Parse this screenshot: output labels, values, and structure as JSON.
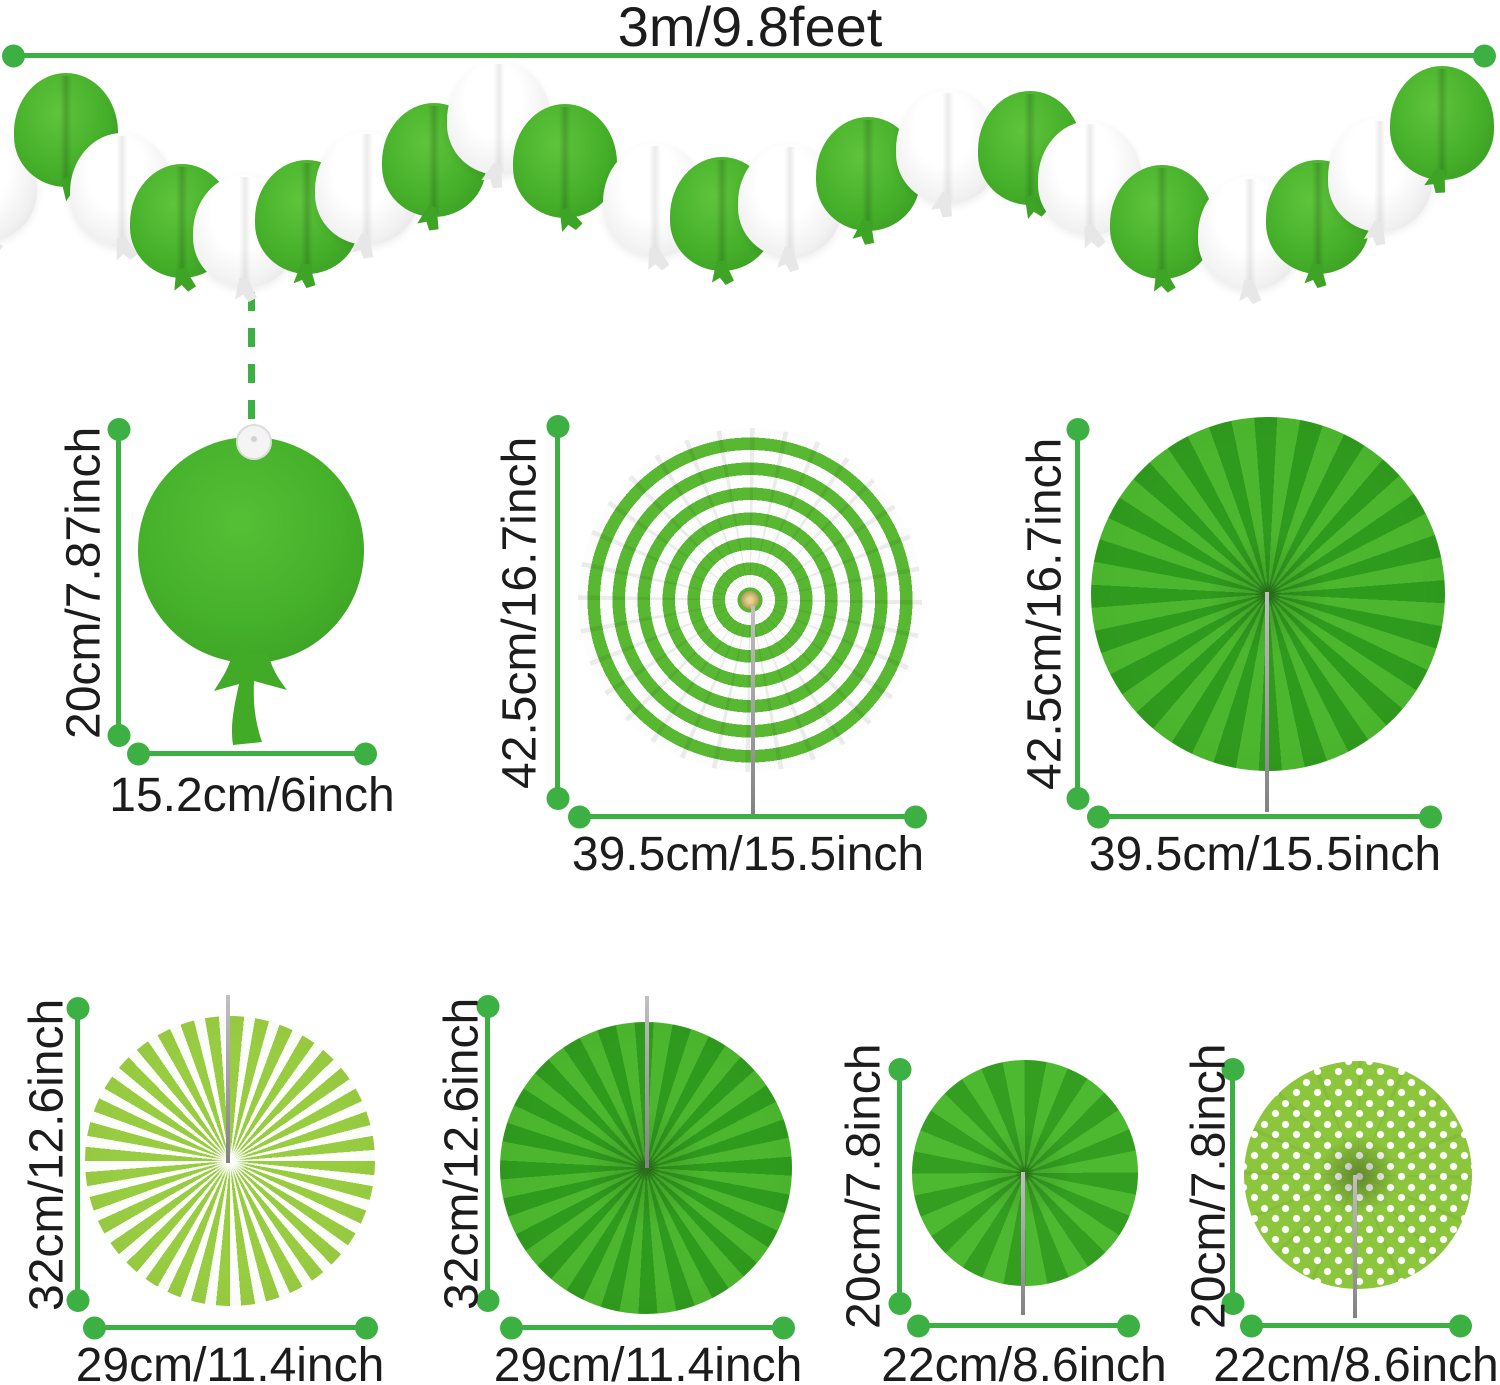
{
  "title": {
    "garland_length_label": "3m/9.8feet"
  },
  "colors": {
    "measure_line_green": "#3cb043",
    "balloon_green": "#45b02b",
    "fan_light_green": "#4cb72e",
    "fan_dark_green": "#2f9b1d",
    "lime_green": "#96ca3f",
    "white": "#ffffff",
    "text": "#1c1c1c"
  },
  "garland": {
    "name": "green-white-paper-balloon-garland",
    "balloon_colors": [
      "white",
      "green",
      "white",
      "green",
      "white",
      "green",
      "white",
      "green",
      "white",
      "green",
      "white",
      "green",
      "white",
      "green",
      "white",
      "green",
      "white",
      "green",
      "white",
      "green",
      "white",
      "green"
    ]
  },
  "items": {
    "balloon": {
      "name": "green-paper-balloon-cutout",
      "height_label": "20cm/7.87inch",
      "width_label": "15.2cm/6inch"
    },
    "fan_striped": {
      "name": "green-white-ring-striped-paper-fan",
      "height_label": "42.5cm/16.7inch",
      "width_label": "39.5cm/15.5inch"
    },
    "fan_solid_large": {
      "name": "solid-green-paper-fan-large",
      "height_label": "42.5cm/16.7inch",
      "width_label": "39.5cm/15.5inch"
    },
    "fan_swirl": {
      "name": "green-white-swirl-striped-paper-fan",
      "height_label": "32cm/12.6inch",
      "width_label": "29cm/11.4inch"
    },
    "fan_solid_medium": {
      "name": "solid-green-paper-fan-medium",
      "height_label": "32cm/12.6inch",
      "width_label": "29cm/11.4inch"
    },
    "fan_solid_small": {
      "name": "solid-green-paper-fan-small",
      "height_label": "20cm/7.8inch",
      "width_label": "22cm/8.6inch"
    },
    "fan_polka": {
      "name": "green-polka-dot-paper-fan",
      "height_label": "20cm/7.8inch",
      "width_label": "22cm/8.6inch"
    }
  }
}
